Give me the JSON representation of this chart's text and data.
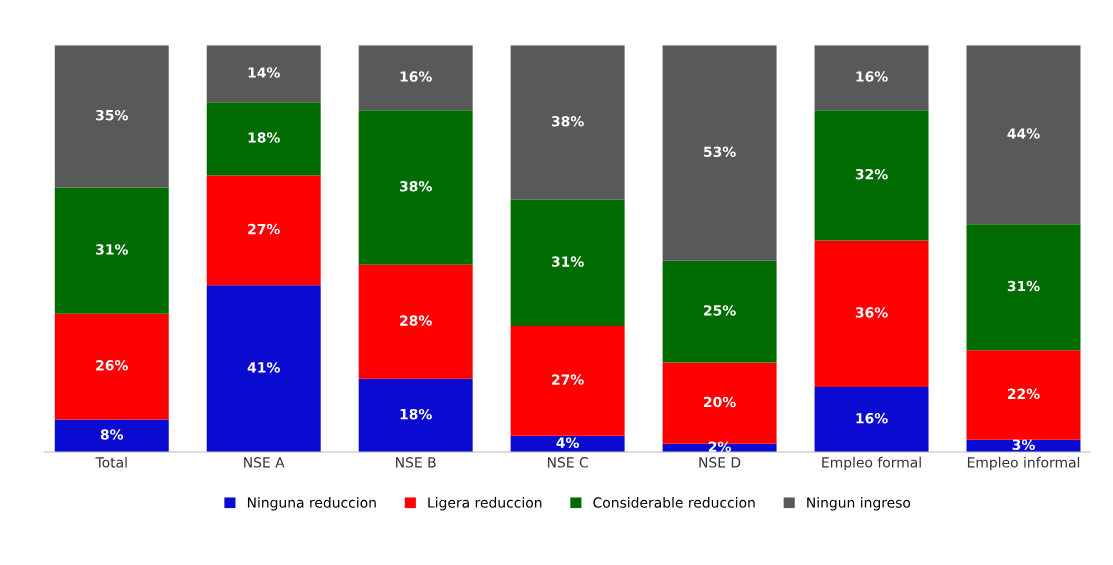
{
  "chart_data": {
    "type": "bar",
    "stacked": true,
    "legend": "bottom",
    "grid": false,
    "categories": [
      "Total",
      "NSE A",
      "NSE B",
      "NSE C",
      "NSE D",
      "Empleo formal",
      "Empleo informal"
    ],
    "series": [
      {
        "name": "Ninguna reduccion",
        "color": "#0a0ad0",
        "values": [
          8,
          41,
          18,
          4,
          2,
          16,
          3
        ],
        "value_labels": [
          "8%",
          "41%",
          "18%",
          "4%",
          "2%",
          "16%",
          "3%"
        ]
      },
      {
        "name": "Ligera reduccion",
        "color": "#ff0000",
        "values": [
          26,
          27,
          28,
          27,
          20,
          36,
          22
        ],
        "value_labels": [
          "26%",
          "27%",
          "28%",
          "27%",
          "20%",
          "36%",
          "22%"
        ]
      },
      {
        "name": "Considerable reduccion",
        "color": "#006b00",
        "values": [
          31,
          18,
          38,
          31,
          25,
          32,
          31
        ],
        "value_labels": [
          "31%",
          "18%",
          "38%",
          "31%",
          "25%",
          "32%",
          "31%"
        ]
      },
      {
        "name": "Ningun ingreso",
        "color": "#595959",
        "values": [
          35,
          14,
          16,
          38,
          53,
          16,
          44
        ],
        "value_labels": [
          "35%",
          "14%",
          "16%",
          "38%",
          "53%",
          "16%",
          "44%"
        ]
      }
    ]
  }
}
